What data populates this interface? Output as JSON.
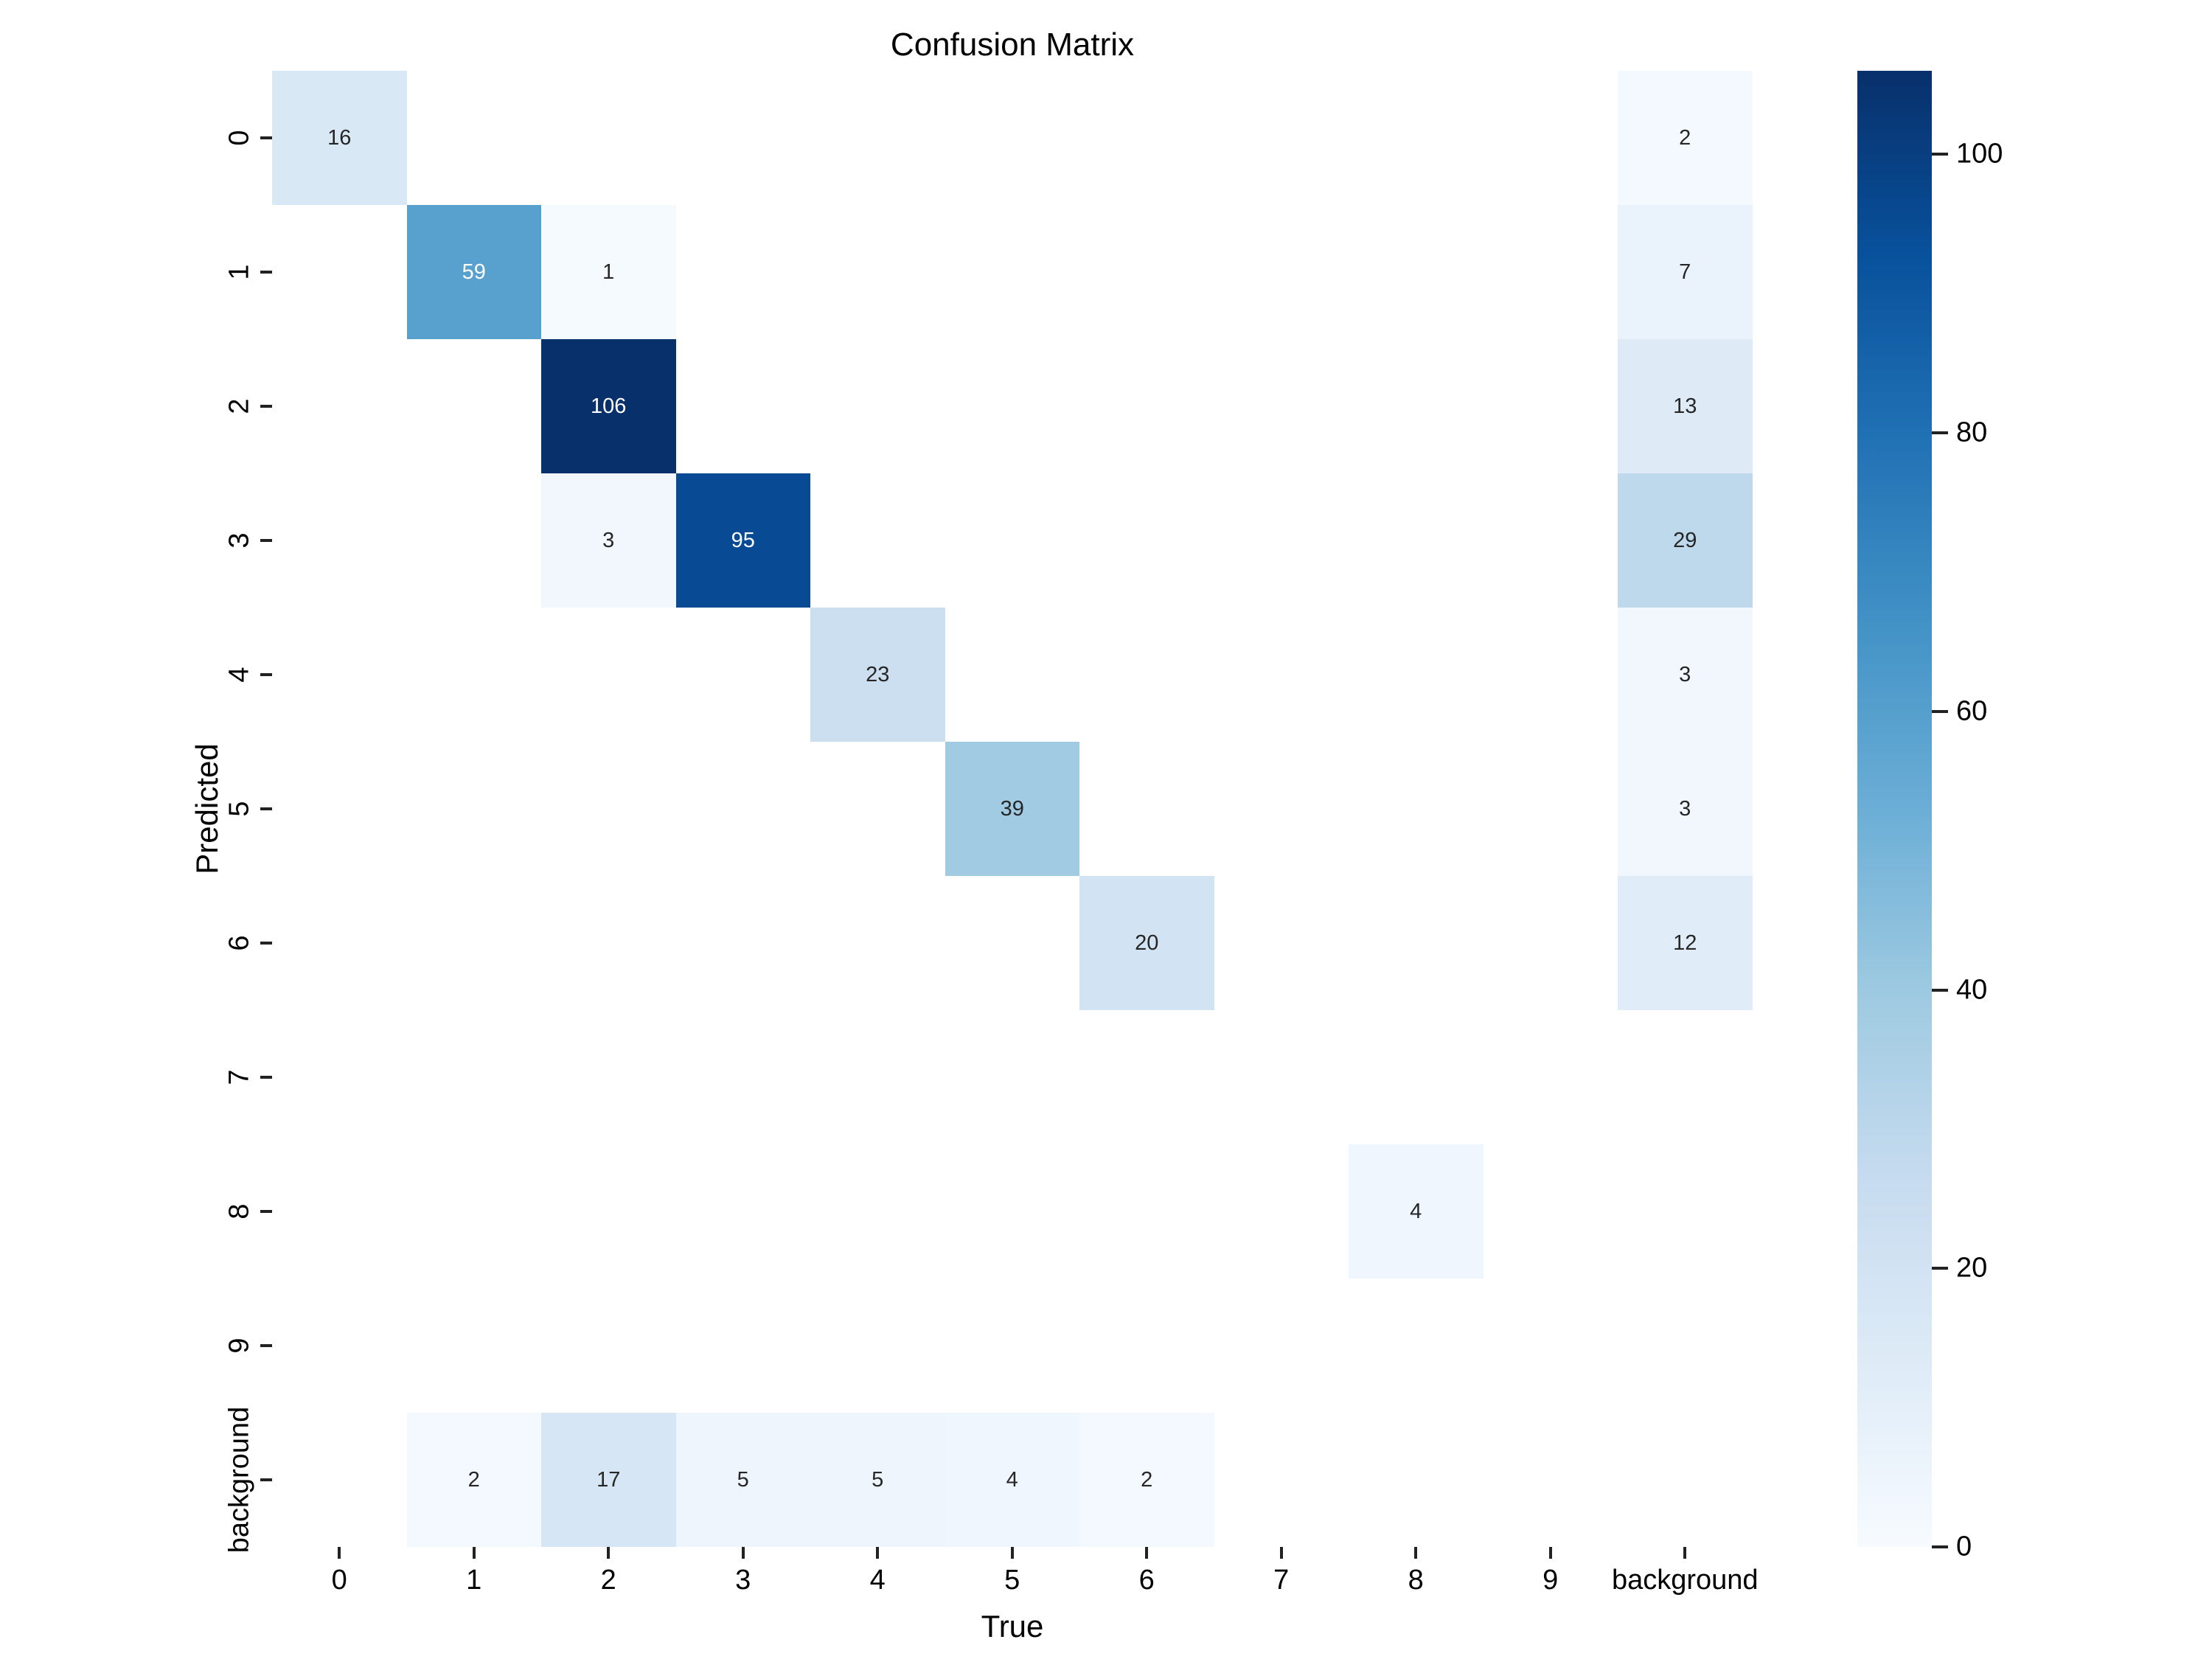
{
  "chart_data": {
    "type": "heatmap",
    "title": "Confusion Matrix",
    "xlabel": "True",
    "ylabel": "Predicted",
    "x_categories": [
      "0",
      "1",
      "2",
      "3",
      "4",
      "5",
      "6",
      "7",
      "8",
      "9",
      "background"
    ],
    "y_categories": [
      "0",
      "1",
      "2",
      "3",
      "4",
      "5",
      "6",
      "7",
      "8",
      "9",
      "background"
    ],
    "matrix": [
      [
        16,
        0,
        0,
        0,
        0,
        0,
        0,
        0,
        0,
        0,
        2
      ],
      [
        0,
        59,
        1,
        0,
        0,
        0,
        0,
        0,
        0,
        0,
        7
      ],
      [
        0,
        0,
        106,
        0,
        0,
        0,
        0,
        0,
        0,
        0,
        13
      ],
      [
        0,
        0,
        3,
        95,
        0,
        0,
        0,
        0,
        0,
        0,
        29
      ],
      [
        0,
        0,
        0,
        0,
        23,
        0,
        0,
        0,
        0,
        0,
        3
      ],
      [
        0,
        0,
        0,
        0,
        0,
        39,
        0,
        0,
        0,
        0,
        3
      ],
      [
        0,
        0,
        0,
        0,
        0,
        0,
        20,
        0,
        0,
        0,
        12
      ],
      [
        0,
        0,
        0,
        0,
        0,
        0,
        0,
        0,
        0,
        0,
        0
      ],
      [
        0,
        0,
        0,
        0,
        0,
        0,
        0,
        0,
        4,
        0,
        0
      ],
      [
        0,
        0,
        0,
        0,
        0,
        0,
        0,
        0,
        0,
        0,
        0
      ],
      [
        0,
        2,
        17,
        5,
        5,
        4,
        2,
        0,
        0,
        0,
        0
      ]
    ],
    "hide_zero_cells": true,
    "vmin": 0,
    "vmax": 106,
    "colormap_name": "Blues",
    "colormap_stops": [
      {
        "pos": 0.0,
        "color": "#f7fbff"
      },
      {
        "pos": 0.125,
        "color": "#deebf7"
      },
      {
        "pos": 0.25,
        "color": "#c6dbef"
      },
      {
        "pos": 0.375,
        "color": "#9ecae1"
      },
      {
        "pos": 0.5,
        "color": "#6baed6"
      },
      {
        "pos": 0.625,
        "color": "#4292c6"
      },
      {
        "pos": 0.75,
        "color": "#2171b5"
      },
      {
        "pos": 0.875,
        "color": "#08519c"
      },
      {
        "pos": 1.0,
        "color": "#08306b"
      }
    ],
    "colorbar_ticks": [
      0,
      20,
      40,
      60,
      80,
      100
    ],
    "legend_position": "right-colorbar",
    "grid": false,
    "annot_text_dark": "#262626",
    "annot_text_light": "#ffffff",
    "tick_mark_color": "#222222",
    "text_color": "#000000",
    "background_color": "#ffffff"
  }
}
